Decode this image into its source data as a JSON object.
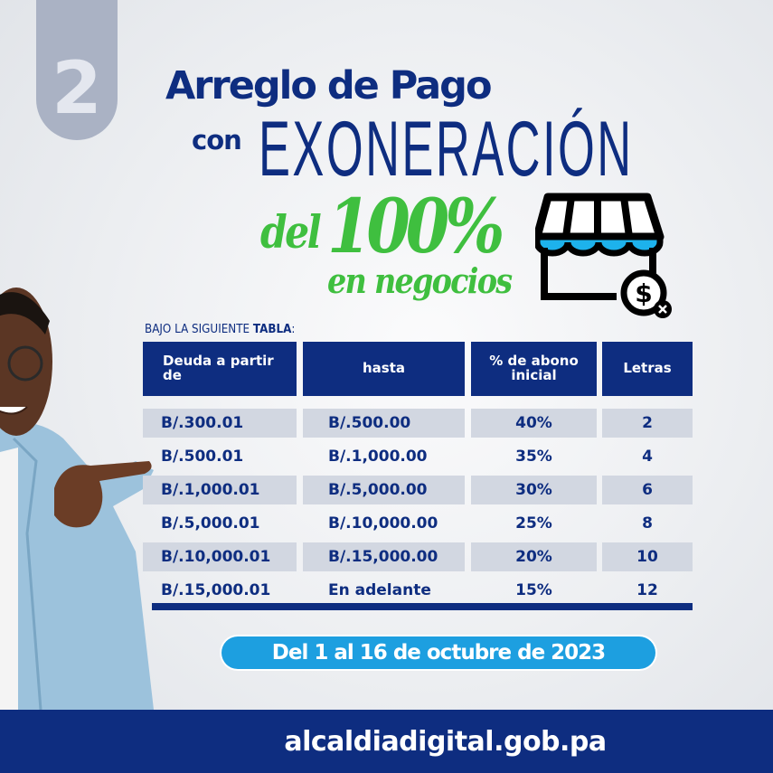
{
  "badge_number": "2",
  "title": {
    "line1": "Arreglo de Pago",
    "con": "con",
    "exoneracion": "EXONERACIÓN",
    "del": "del",
    "percent": "100%",
    "negocios": "en negocios"
  },
  "table_intro": {
    "prefix": "BAJO LA SIGUIENTE ",
    "bold": "TABLA",
    "suffix": ":"
  },
  "table": {
    "headers": [
      "Deuda a partir de",
      "hasta",
      "% de abono inicial",
      "Letras"
    ],
    "rows": [
      [
        "B/.300.01",
        "B/.500.00",
        "40%",
        "2"
      ],
      [
        "B/.500.01",
        "B/.1,000.00",
        "35%",
        "4"
      ],
      [
        "B/.1,000.01",
        "B/.5,000.00",
        "30%",
        "6"
      ],
      [
        "B/.5,000.01",
        "B/.10,000.00",
        "25%",
        "8"
      ],
      [
        "B/.10,000.01",
        "B/.15,000.00",
        "20%",
        "10"
      ],
      [
        "B/.15,000.01",
        "En adelante",
        "15%",
        "12"
      ]
    ]
  },
  "date_range": "Del 1 al 16 de octubre de 2023",
  "footer_url": "alcaldiadigital.gob.pa",
  "colors": {
    "navy": "#0e2d80",
    "green": "#3fbf3f",
    "accent_blue": "#1d9fe0",
    "row_shade": "#d2d7e1"
  },
  "icons": [
    "storefront-dollar-icon"
  ]
}
